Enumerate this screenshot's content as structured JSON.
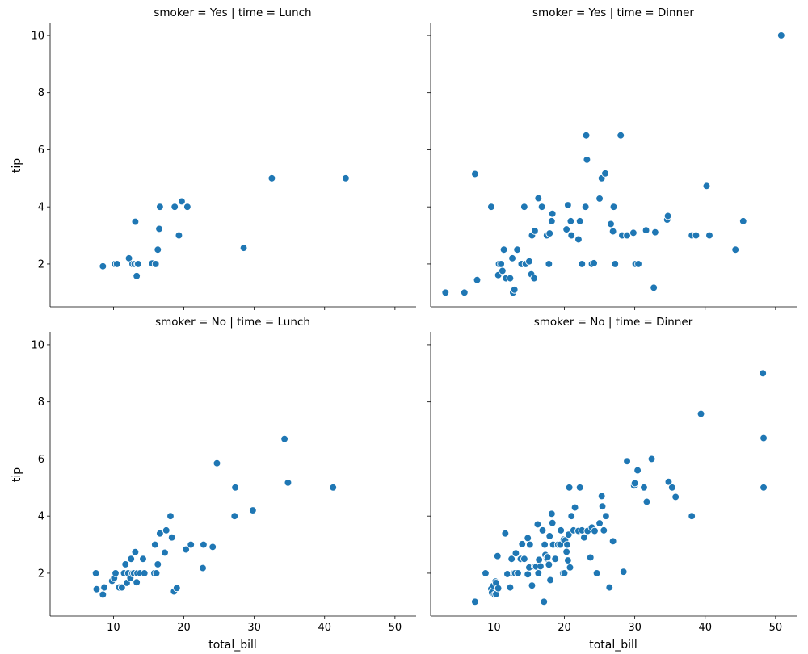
{
  "chart_data": [
    {
      "type": "scatter",
      "title": "smoker = Yes | time = Lunch",
      "xlabel": "",
      "ylabel": "tip",
      "xlim": [
        1,
        53
      ],
      "ylim": [
        0.5,
        10.45
      ],
      "xticks": [
        "10",
        "20",
        "30",
        "40",
        "50"
      ],
      "yticks": [
        "2",
        "4",
        "6",
        "8",
        "10"
      ],
      "x_tick_labels_visible": false,
      "y_tick_labels_visible": true,
      "color": "#1f77b4",
      "x": [
        8.5,
        10.2,
        10.5,
        12.2,
        12.7,
        13.0,
        13.1,
        13.3,
        13.4,
        13.5,
        15.5,
        16.0,
        16.3,
        16.5,
        16.6,
        18.7,
        19.3,
        19.7,
        20.5,
        28.5,
        32.5,
        43.0
      ],
      "y": [
        1.92,
        2.0,
        2.0,
        2.2,
        2.0,
        2.0,
        3.48,
        1.58,
        2.0,
        2.0,
        2.02,
        2.0,
        2.5,
        3.23,
        4.0,
        4.0,
        3.0,
        4.19,
        4.0,
        2.56,
        5.0,
        5.0
      ]
    },
    {
      "type": "scatter",
      "title": "smoker = Yes | time = Dinner",
      "xlabel": "",
      "ylabel": "",
      "xlim": [
        1,
        53
      ],
      "ylim": [
        0.5,
        10.45
      ],
      "xticks": [
        "10",
        "20",
        "30",
        "40",
        "50"
      ],
      "yticks": [
        "2",
        "4",
        "6",
        "8",
        "10"
      ],
      "x_tick_labels_visible": false,
      "y_tick_labels_visible": false,
      "color": "#1f77b4",
      "x": [
        3.1,
        5.8,
        7.3,
        7.6,
        9.6,
        10.6,
        10.7,
        11.0,
        11.2,
        11.4,
        11.7,
        12.3,
        12.6,
        12.7,
        12.9,
        13.3,
        13.9,
        14.3,
        14.5,
        15.0,
        15.3,
        15.4,
        15.7,
        15.8,
        16.3,
        16.8,
        17.5,
        17.8,
        17.9,
        18.2,
        18.3,
        20.3,
        20.5,
        20.9,
        21.0,
        22.0,
        22.2,
        22.5,
        23.0,
        23.1,
        23.2,
        23.9,
        24.2,
        25.0,
        25.3,
        25.8,
        26.6,
        26.9,
        27.0,
        27.2,
        28.0,
        28.2,
        28.2,
        28.9,
        29.8,
        30.1,
        30.5,
        31.6,
        32.7,
        32.9,
        34.6,
        34.7,
        38.1,
        38.7,
        40.2,
        40.6,
        44.3,
        45.4,
        50.8
      ],
      "y": [
        1.0,
        1.0,
        5.15,
        1.44,
        4.0,
        1.61,
        2.0,
        2.0,
        1.76,
        2.5,
        1.5,
        1.5,
        2.2,
        1.0,
        1.1,
        2.5,
        2.0,
        4.0,
        2.0,
        2.09,
        1.64,
        3.0,
        1.5,
        3.16,
        4.3,
        4.0,
        3.0,
        2.0,
        3.07,
        3.5,
        3.76,
        3.21,
        4.06,
        3.5,
        3.0,
        2.86,
        3.5,
        2.0,
        4.0,
        6.5,
        5.65,
        2.0,
        2.03,
        4.29,
        5.0,
        5.17,
        3.4,
        3.14,
        4.0,
        2.0,
        6.5,
        3.0,
        3.0,
        3.0,
        3.09,
        2.0,
        2.0,
        3.18,
        1.17,
        3.11,
        3.55,
        3.68,
        3.0,
        3.0,
        4.73,
        3.0,
        2.5,
        3.5,
        10.0
      ]
    },
    {
      "type": "scatter",
      "title": "smoker = No | time = Lunch",
      "xlabel": "total_bill",
      "ylabel": "tip",
      "xlim": [
        1,
        53
      ],
      "ylim": [
        0.5,
        10.45
      ],
      "xticks": [
        "10",
        "20",
        "30",
        "40",
        "50"
      ],
      "yticks": [
        "2",
        "4",
        "6",
        "8",
        "10"
      ],
      "x_tick_labels_visible": true,
      "y_tick_labels_visible": true,
      "color": "#1f77b4",
      "x": [
        7.5,
        7.6,
        8.5,
        8.6,
        8.7,
        9.8,
        10.1,
        10.3,
        10.8,
        11.2,
        11.5,
        11.7,
        11.9,
        12.1,
        12.4,
        12.5,
        12.7,
        12.9,
        13.1,
        13.3,
        13.4,
        13.8,
        14.2,
        14.4,
        15.8,
        15.9,
        16.1,
        16.3,
        16.6,
        17.3,
        17.5,
        18.1,
        18.3,
        18.6,
        19.0,
        20.3,
        21.0,
        22.7,
        22.8,
        24.1,
        24.7,
        27.2,
        27.3,
        29.8,
        34.3,
        34.8,
        41.2
      ],
      "y": [
        2.0,
        1.44,
        1.25,
        1.5,
        1.5,
        1.73,
        1.83,
        2.0,
        1.5,
        1.5,
        2.0,
        2.31,
        1.66,
        2.0,
        1.83,
        2.5,
        2.0,
        2.0,
        2.74,
        1.68,
        2.0,
        2.0,
        2.5,
        2.0,
        2.0,
        3.0,
        2.0,
        2.31,
        3.39,
        2.72,
        3.5,
        4.0,
        3.25,
        1.36,
        1.48,
        2.83,
        3.0,
        2.18,
        3.0,
        2.92,
        5.85,
        4.0,
        5.0,
        4.2,
        6.7,
        5.17,
        5.0
      ]
    },
    {
      "type": "scatter",
      "title": "smoker = No | time = Dinner",
      "xlabel": "total_bill",
      "ylabel": "",
      "xlim": [
        1,
        53
      ],
      "ylim": [
        0.5,
        10.45
      ],
      "xticks": [
        "10",
        "20",
        "30",
        "40",
        "50"
      ],
      "yticks": [
        "2",
        "4",
        "6",
        "8",
        "10"
      ],
      "x_tick_labels_visible": true,
      "y_tick_labels_visible": false,
      "color": "#1f77b4",
      "x": [
        7.3,
        8.8,
        9.6,
        9.7,
        9.9,
        10.1,
        10.2,
        10.3,
        10.3,
        10.5,
        10.6,
        11.6,
        11.9,
        12.3,
        12.5,
        12.8,
        13.0,
        13.1,
        13.4,
        13.8,
        14.0,
        14.0,
        14.3,
        14.8,
        14.8,
        15.0,
        15.1,
        15.4,
        15.8,
        16.0,
        16.2,
        16.3,
        16.4,
        16.6,
        16.9,
        17.1,
        17.2,
        17.3,
        17.5,
        17.6,
        17.8,
        17.9,
        18.0,
        18.2,
        18.3,
        18.4,
        18.7,
        19.1,
        19.4,
        19.5,
        19.8,
        19.9,
        20.0,
        20.1,
        20.3,
        20.4,
        20.5,
        20.6,
        20.7,
        20.8,
        21.0,
        21.3,
        21.5,
        22.0,
        22.2,
        22.5,
        22.8,
        23.3,
        23.7,
        23.9,
        24.3,
        24.6,
        25.0,
        25.3,
        25.4,
        25.6,
        25.9,
        26.4,
        26.9,
        28.4,
        28.9,
        29.9,
        30.0,
        30.4,
        31.3,
        31.7,
        32.4,
        34.8,
        35.3,
        35.8,
        38.1,
        39.4,
        48.2,
        48.3,
        48.3
      ],
      "y": [
        1.0,
        2.0,
        1.45,
        1.32,
        1.56,
        1.25,
        1.71,
        1.66,
        1.27,
        2.6,
        1.47,
        3.39,
        1.97,
        1.5,
        2.5,
        2.0,
        2.0,
        2.7,
        2.0,
        2.5,
        3.0,
        3.02,
        2.5,
        1.96,
        3.23,
        2.2,
        3.0,
        1.57,
        2.23,
        2.23,
        3.71,
        2.0,
        2.47,
        2.24,
        3.5,
        1.0,
        3.0,
        2.64,
        2.52,
        2.56,
        2.3,
        3.3,
        1.76,
        4.08,
        3.76,
        3.0,
        2.5,
        3.0,
        3.0,
        3.5,
        2.0,
        3.18,
        2.0,
        3.15,
        2.75,
        3.0,
        2.45,
        3.35,
        5.0,
        2.2,
        4.0,
        3.5,
        4.3,
        3.48,
        5.0,
        3.5,
        3.25,
        3.48,
        2.55,
        3.6,
        3.48,
        2.0,
        3.75,
        4.7,
        4.34,
        3.5,
        4.0,
        1.5,
        3.12,
        2.05,
        5.92,
        5.07,
        5.15,
        5.6,
        5.0,
        4.5,
        6.0,
        5.2,
        5.0,
        4.67,
        4.0,
        7.58,
        9.0,
        6.73,
        5.0
      ]
    }
  ]
}
